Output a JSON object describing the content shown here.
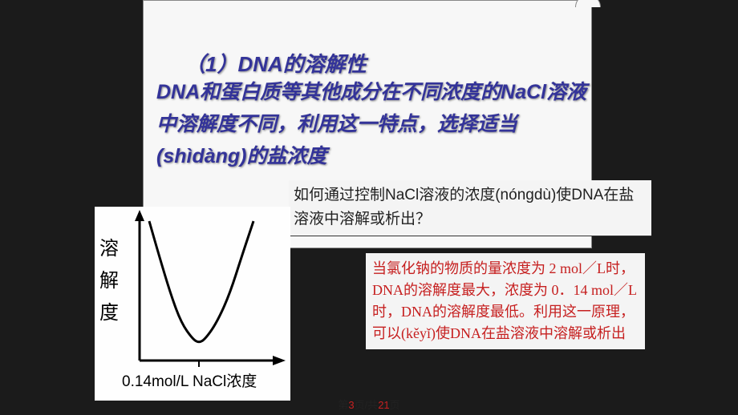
{
  "scroll": {
    "title": "（1）DNA的溶解性",
    "body": "DNA和蛋白质等其他成分在不同浓度的NaCl溶液中溶解度不同，利用这一特点，选择适当(shìdàng)的盐浓度",
    "title_color": "#333399",
    "body_color": "#333399",
    "bg_color": "#f7f7f7"
  },
  "question": {
    "text": "如何通过控制NaCl溶液的浓度(nóngdù)使DNA在盐溶液中溶解或析出？",
    "bg_color": "#f4f4f4",
    "text_color": "#222222"
  },
  "chart": {
    "type": "line",
    "y_label_1": "溶",
    "y_label_2": "解",
    "y_label_3": "度",
    "x_label": "0.14mol/L NaCl浓度",
    "curve_color": "#000000",
    "bg_color": "#fefefe",
    "axis_color": "#000000",
    "line_width": 3,
    "curve_points": [
      [
        68,
        18
      ],
      [
        80,
        60
      ],
      [
        95,
        110
      ],
      [
        108,
        145
      ],
      [
        122,
        165
      ],
      [
        130,
        170
      ],
      [
        138,
        165
      ],
      [
        152,
        145
      ],
      [
        168,
        110
      ],
      [
        184,
        60
      ],
      [
        198,
        18
      ]
    ]
  },
  "answer": {
    "text": "当氯化钠的物质的量浓度为 2 mol／L时，DNA的溶解度最大，浓度为 0．14 mol／L时，DNA的溶解度最低。利用这一原理，可以(kěyǐ)使DNA在盐溶液中溶解或析出",
    "text_color": "#c62020",
    "bg_color": "#f4f4f4"
  },
  "pager": {
    "p1": "第",
    "p2": "3",
    "p3": "页/共",
    "p4": "21",
    "p5": "页"
  }
}
